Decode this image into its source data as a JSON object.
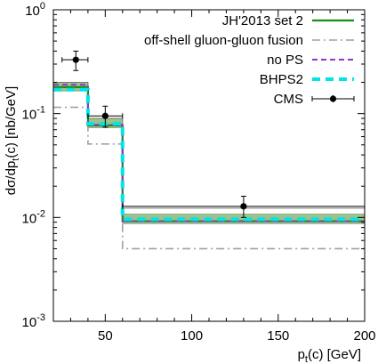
{
  "chart_data": {
    "type": "line",
    "xlabel_main": "p",
    "xlabel_sub": "t",
    "xlabel_tail": "(c) [GeV]",
    "ylabel_main": "dσ/dp",
    "ylabel_sub": "t",
    "ylabel_tail": "(c) [nb/GeV]",
    "xlim": [
      20,
      200
    ],
    "ylim": [
      0.001,
      1
    ],
    "yscale": "log",
    "x_ticks": [
      "50",
      "100",
      "150",
      "200"
    ],
    "y_tick_base": "10",
    "y_ticks": [
      {
        "exp": "0",
        "value": 1
      },
      {
        "exp": "-1",
        "value": 0.1
      },
      {
        "exp": "-2",
        "value": 0.01
      },
      {
        "exp": "-3",
        "value": 0.001
      }
    ],
    "legend_position": "top-right",
    "bin_edges": [
      20,
      40,
      60,
      200
    ],
    "series": [
      {
        "name": "JH'2013 set 2",
        "values": [
          0.18,
          0.077,
          0.0092
        ],
        "color": "#1a8c1a",
        "style": "solid"
      },
      {
        "name": "off-shell gluon-gluon fusion",
        "values": [
          0.115,
          0.051,
          0.005
        ],
        "color": "#a0a0a0",
        "style": "dashdot"
      },
      {
        "name": "no PS",
        "values": [
          0.19,
          0.078,
          0.0092
        ],
        "color": "#9932cc",
        "style": "dashed"
      },
      {
        "name": "BHPS2",
        "values": [
          0.17,
          0.08,
          0.0096
        ],
        "color": "#00e5e5",
        "style": "dashed-thick"
      }
    ],
    "uncertainty_band": {
      "color": "#9cc488",
      "lower": [
        0.165,
        0.073,
        0.0087
      ],
      "upper": [
        0.2,
        0.09,
        0.0108
      ]
    },
    "upper_line": {
      "values": [
        0.2,
        0.09,
        0.0123
      ],
      "color": "#777777"
    },
    "data_points": {
      "name": "CMS",
      "x": [
        33,
        50,
        130
      ],
      "y": [
        0.33,
        0.095,
        0.0128
      ],
      "xerr_low": [
        8,
        10,
        70
      ],
      "xerr_high": [
        7,
        10,
        70
      ],
      "yerr_low": [
        0.07,
        0.021,
        0.0028
      ],
      "yerr_high": [
        0.07,
        0.023,
        0.0032
      ]
    }
  }
}
